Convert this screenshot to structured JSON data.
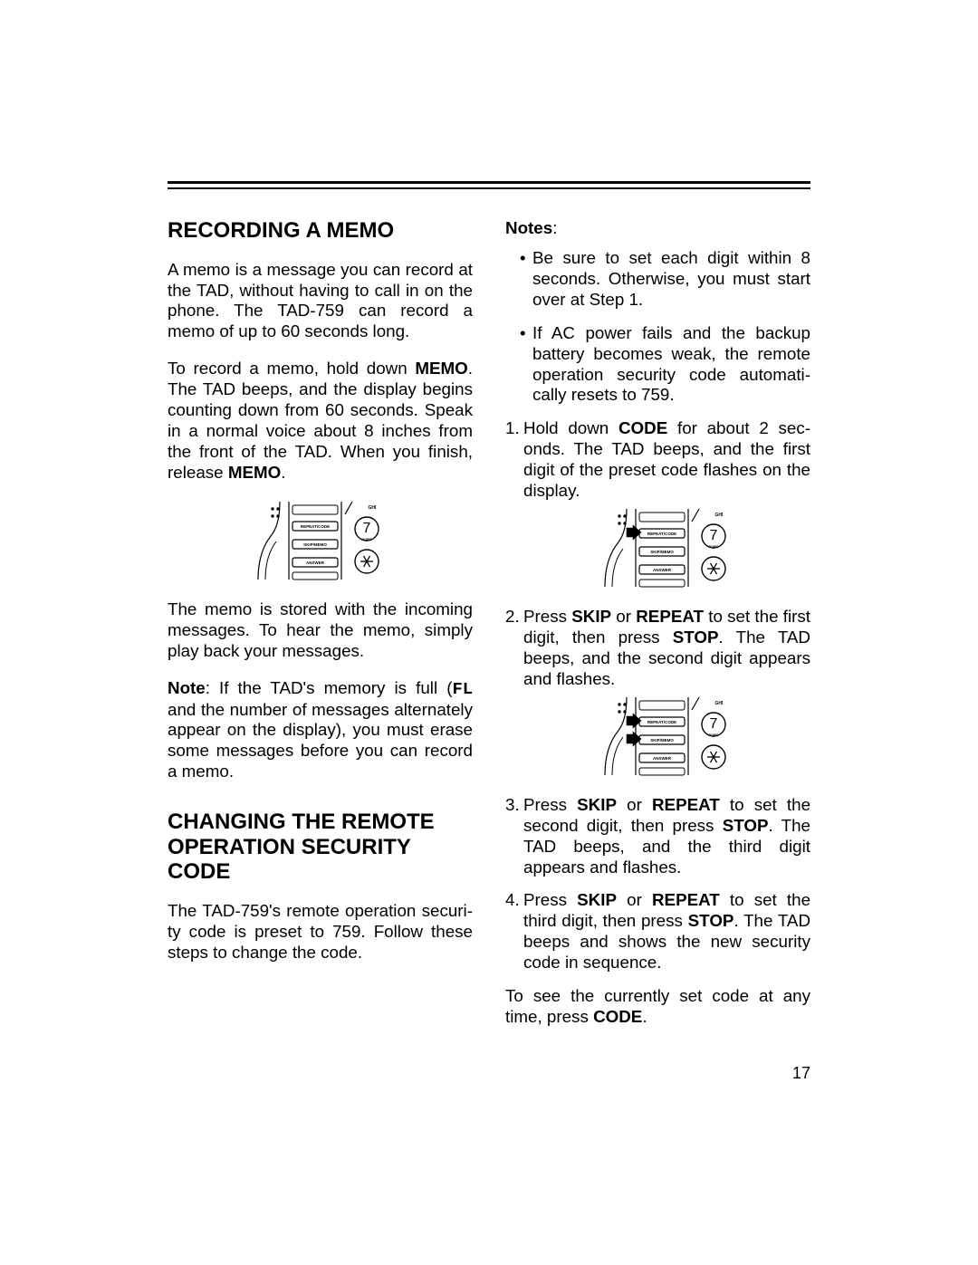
{
  "page_number": "17",
  "colors": {
    "text": "#000000",
    "background": "#ffffff",
    "rule": "#000000",
    "diagram_stroke": "#000000",
    "diagram_fill": "#ffffff"
  },
  "typography": {
    "heading_fontsize_pt": 18,
    "body_fontsize_pt": 14,
    "body_line_height": 1.22,
    "font_family": "Arial"
  },
  "left": {
    "h1": "RECORDING A MEMO",
    "p1": "A memo is a message you can record at the TAD, without having to call in on the phone. The TAD-759 can record a memo of up to 60 seconds long.",
    "p2_a": "To record a memo, hold down ",
    "p2_memo": "MEMO",
    "p2_b": ". The TAD beeps, and the display begins counting down from 60 seconds. Speak in a normal voice about 8 inches from the front of the TAD. When you finish, release ",
    "p2_memo2": "MEMO",
    "p2_c": ".",
    "p3": "The memo is stored with the incoming messages. To hear the memo, simply play back your messages.",
    "p4_note": "Note",
    "p4_a": ": If the TAD's memory is full (",
    "p4_fl": "FL",
    "p4_b": " and the number of messages alternately appear on the display), you must erase some messages before you can record a memo.",
    "h2": "CHANGING THE REMOTE OPERATION SECURITY CODE",
    "p5": "The TAD-759's remote operation secu­ri­ty code is preset to 759. Follow these steps to change the code."
  },
  "right": {
    "notes_label": "Notes",
    "notes_colon": ":",
    "bul1": "Be sure to set each digit within 8 seconds. Otherwise, you must start over at Step 1.",
    "bul2": "If AC power fails and the backup battery becomes weak, the remote operation security code automati­cally resets to 759.",
    "s1_a": "Hold down ",
    "s1_code": "CODE",
    "s1_b": " for about 2 sec­onds. The TAD beeps, and the first digit of the preset code flashes on the display.",
    "s2_a": "Press ",
    "s2_skip": "SKIP",
    "s2_b": " or ",
    "s2_repeat": "REPEAT",
    "s2_c": " to set the first digit, then press ",
    "s2_stop": "STOP",
    "s2_d": ". The TAD beeps, and the second digit appears and flashes.",
    "s3_a": "Press ",
    "s3_skip": "SKIP",
    "s3_b": " or ",
    "s3_repeat": "REPEAT",
    "s3_c": " to set the second digit, then press ",
    "s3_stop": "STOP",
    "s3_d": ". The TAD beeps, and the third digit appears and flashes.",
    "s4_a": "Press ",
    "s4_skip": "SKIP",
    "s4_b": " or ",
    "s4_repeat": "REPEAT",
    "s4_c": " to set the third digit, then press ",
    "s4_stop": "STOP",
    "s4_d": ". The TAD beeps and shows the new security code in sequence.",
    "p_last_a": "To see the currently set code at any time, press ",
    "p_last_code": "CODE",
    "p_last_b": "."
  },
  "diagrams": {
    "left1": {
      "arrows": [],
      "digit": "7",
      "digit_sub": "PQRS",
      "top_label": "GHI",
      "btn1": "REPEAT/CODE",
      "btn2": "SKIP/MEMO",
      "btn3": "ANSWER"
    },
    "right1": {
      "arrows": [
        {
          "y": 28
        }
      ],
      "digit": "7",
      "digit_sub": "PQRS",
      "top_label": "GHI",
      "btn1": "REPEAT/CODE",
      "btn2": "SKIP/MEMO",
      "btn3": "ANSWER"
    },
    "right2": {
      "arrows": [
        {
          "y": 28
        },
        {
          "y": 48
        }
      ],
      "digit": "7",
      "digit_sub": "PQRS",
      "top_label": "GHI",
      "btn1": "REPEAT/CODE",
      "btn2": "SKIP/MEMO",
      "btn3": "ANSWER"
    }
  }
}
